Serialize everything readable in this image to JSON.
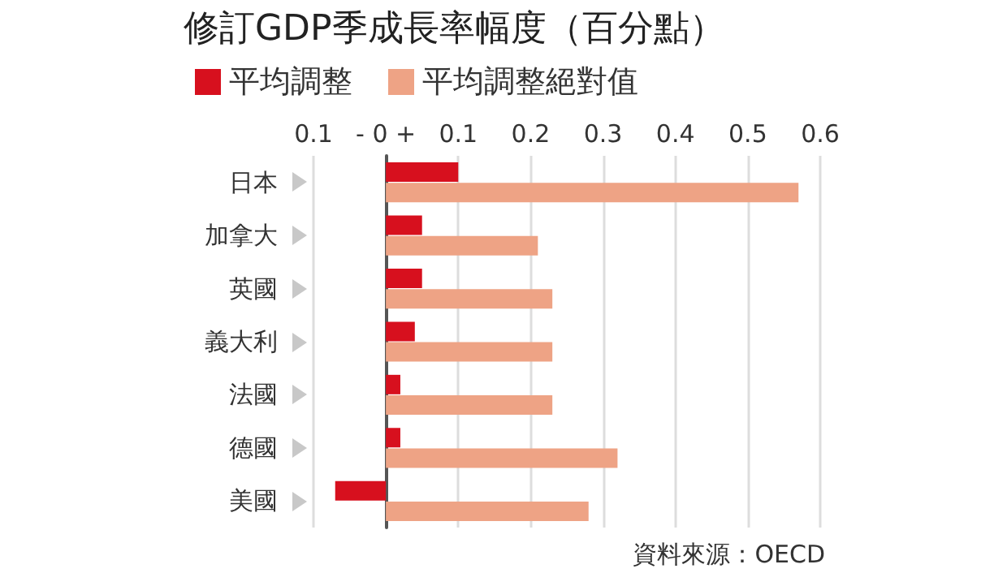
{
  "chart_data": {
    "type": "bar",
    "orientation": "horizontal",
    "title": "修訂GDP季成長率幅度（百分點）",
    "categories": [
      "日本",
      "加拿大",
      "英國",
      "義大利",
      "法國",
      "德國",
      "美國"
    ],
    "series": [
      {
        "name": "平均調整",
        "color": "#d7101e",
        "values": [
          0.1,
          0.05,
          0.05,
          0.04,
          0.02,
          0.02,
          -0.07
        ]
      },
      {
        "name": "平均調整絕對值",
        "color": "#eea385",
        "values": [
          0.57,
          0.21,
          0.23,
          0.23,
          0.23,
          0.32,
          0.28
        ]
      }
    ],
    "xlim": [
      -0.1,
      0.6
    ],
    "xticks": [
      {
        "value": -0.1,
        "label": "0.1"
      },
      {
        "value": 0,
        "label": "- 0 +"
      },
      0.1,
      0.2,
      0.3,
      0.4,
      0.5,
      0.6
    ],
    "grid": "x",
    "legend": "top left",
    "annotations": [
      "資料來源：OECD"
    ]
  }
}
